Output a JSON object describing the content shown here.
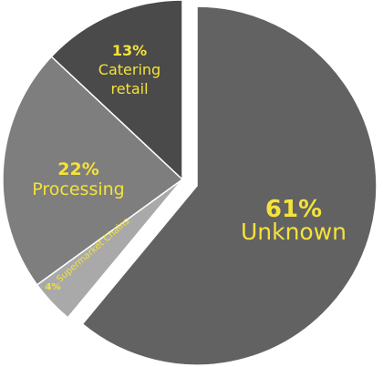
{
  "chart_data": {
    "type": "pie",
    "slices": [
      {
        "category": "Unknown",
        "percent_label": "61%",
        "value": 61,
        "color": "#626262",
        "label_color": "#f5e23a",
        "exploded": true
      },
      {
        "category": "Supermarket Chains",
        "percent_label": "4%",
        "value": 4,
        "color": "#a9a9a9",
        "label_color": "#f5e23a",
        "exploded": false
      },
      {
        "category": "Processing",
        "percent_label": "22%",
        "value": 22,
        "color": "#7e7e7e",
        "label_color": "#f5e23a",
        "exploded": false
      },
      {
        "category": "Catering retail",
        "category_lines": [
          "Catering",
          "retail"
        ],
        "percent_label": "13%",
        "value": 13,
        "color": "#4a4a4a",
        "label_color": "#f5e23a",
        "exploded": false
      }
    ],
    "legend": "none",
    "labels": "inside"
  }
}
